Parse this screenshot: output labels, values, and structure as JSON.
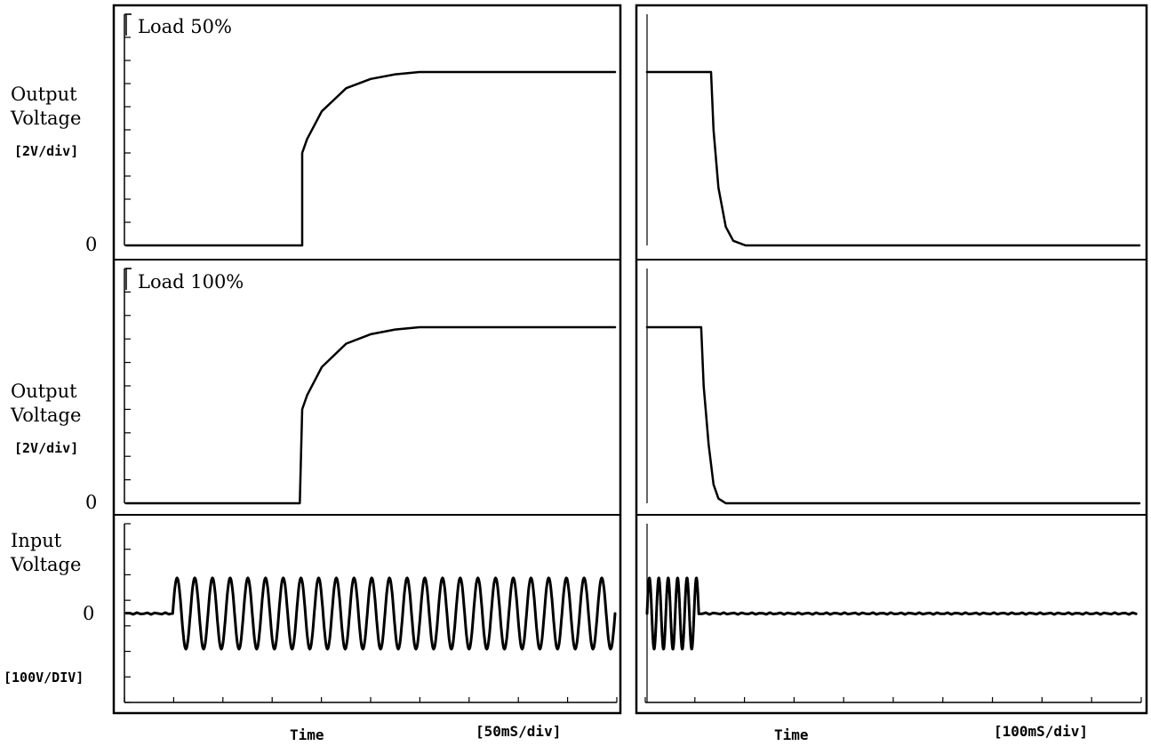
{
  "panels": {
    "load50": {
      "label": "Load  50%",
      "ylabel": [
        "Output",
        "Voltage"
      ],
      "yunit": "[2V/div]",
      "zero": "0"
    },
    "load100": {
      "label": "Load 100%",
      "ylabel": [
        "Output",
        "Voltage"
      ],
      "yunit": "[2V/div]",
      "zero": "0"
    },
    "input": {
      "ylabel": [
        "Input",
        "Voltage"
      ],
      "yunit": "[100V/DIV]",
      "zero": "0"
    }
  },
  "xaxis": {
    "left": {
      "label": "Time",
      "unit": "[50mS/div]"
    },
    "right": {
      "label": "Time",
      "unit": "[100mS/div]"
    }
  },
  "chart_data": [
    {
      "type": "line",
      "panel": "left-top",
      "label": "Load  50%",
      "ylabel": "Output Voltage",
      "yunit": "[2V/div]",
      "xunit": "[50mS/div]",
      "x_div": [
        0,
        10
      ],
      "y_div": [
        0,
        10
      ],
      "series": [
        {
          "x": [
            0,
            3.6,
            3.6,
            3.7,
            4.0,
            4.5,
            5.0,
            5.5,
            6.0,
            7.0,
            10
          ],
          "y": [
            0,
            0,
            4.0,
            4.6,
            5.8,
            6.8,
            7.2,
            7.4,
            7.5,
            7.5,
            7.5
          ]
        }
      ]
    },
    {
      "type": "line",
      "panel": "right-top",
      "ylabel": "Output Voltage",
      "yunit": "[2V/div]",
      "xunit": "[100mS/div]",
      "x_div": [
        0,
        10
      ],
      "y_div": [
        0,
        10
      ],
      "series": [
        {
          "x": [
            0,
            1.3,
            1.35,
            1.45,
            1.6,
            1.75,
            2.0,
            10
          ],
          "y": [
            7.5,
            7.5,
            5.0,
            2.5,
            0.8,
            0.2,
            0,
            0
          ]
        }
      ]
    },
    {
      "type": "line",
      "panel": "left-middle",
      "label": "Load 100%",
      "ylabel": "Output Voltage",
      "yunit": "[2V/div]",
      "xunit": "[50mS/div]",
      "x_div": [
        0,
        10
      ],
      "y_div": [
        0,
        10
      ],
      "series": [
        {
          "x": [
            0,
            3.55,
            3.6,
            3.7,
            4.0,
            4.5,
            5.0,
            5.5,
            6.0,
            7.0,
            10
          ],
          "y": [
            0,
            0,
            4.0,
            4.6,
            5.8,
            6.8,
            7.2,
            7.4,
            7.5,
            7.5,
            7.5
          ]
        }
      ]
    },
    {
      "type": "line",
      "panel": "right-middle",
      "ylabel": "Output Voltage",
      "yunit": "[2V/div]",
      "xunit": "[100mS/div]",
      "x_div": [
        0,
        10
      ],
      "y_div": [
        0,
        10
      ],
      "series": [
        {
          "x": [
            0,
            1.1,
            1.15,
            1.25,
            1.35,
            1.45,
            1.6,
            10
          ],
          "y": [
            7.5,
            7.5,
            5.0,
            2.5,
            0.8,
            0.2,
            0,
            0
          ]
        }
      ]
    },
    {
      "type": "line",
      "panel": "left-bottom",
      "ylabel": "Input Voltage",
      "yunit": "[100V/DIV]",
      "xunit": "[50mS/div]",
      "x_div": [
        0,
        10
      ],
      "y_div": [
        -3.5,
        3.5
      ],
      "series": [
        {
          "kind": "sine",
          "start": 0.95,
          "end": 10,
          "cycles": 25,
          "amplitude": 1.5
        }
      ]
    },
    {
      "type": "line",
      "panel": "right-bottom",
      "ylabel": "Input Voltage",
      "yunit": "[100V/DIV]",
      "xunit": "[100mS/div]",
      "x_div": [
        0,
        10
      ],
      "y_div": [
        -3.5,
        3.5
      ],
      "series": [
        {
          "kind": "sine",
          "start": 0,
          "end": 1.05,
          "cycles": 5.5,
          "amplitude": 1.5
        }
      ]
    }
  ]
}
